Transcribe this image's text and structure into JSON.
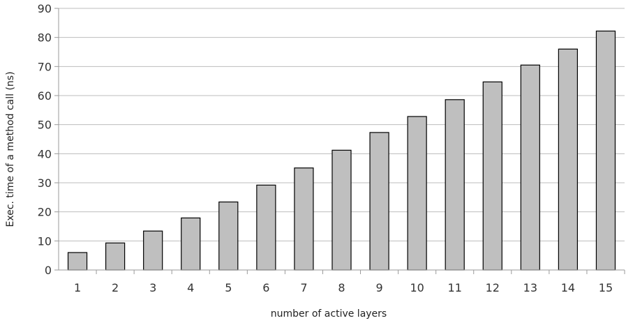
{
  "chart_data": {
    "type": "bar",
    "title": "",
    "xlabel": "number of active layers",
    "ylabel": "Exec. time of a method call (ns)",
    "categories": [
      "1",
      "2",
      "3",
      "4",
      "5",
      "6",
      "7",
      "8",
      "9",
      "10",
      "11",
      "12",
      "13",
      "14",
      "15"
    ],
    "values": [
      6,
      9.3,
      13.4,
      17.9,
      23.4,
      29.2,
      35.1,
      41.2,
      47.3,
      52.8,
      58.6,
      64.7,
      70.5,
      76,
      82.2
    ],
    "ylim": [
      0,
      90
    ],
    "yticks": [
      0,
      10,
      20,
      30,
      40,
      50,
      60,
      70,
      80,
      90
    ],
    "grid": true,
    "colors": {
      "bar_fill": "#bfbfbf",
      "bar_stroke": "#000000"
    }
  }
}
